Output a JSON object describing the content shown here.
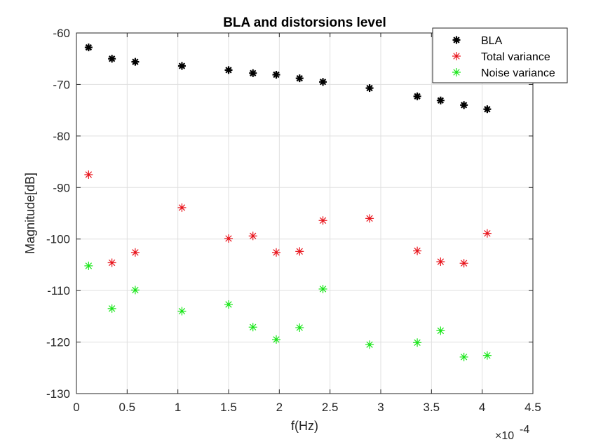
{
  "chart_data": {
    "type": "scatter",
    "title": "BLA and distorsions level",
    "xlabel": "f(Hz)",
    "ylabel": "Magnitude[dB]",
    "x_exponent": {
      "base": "×10",
      "power": "-4"
    },
    "xlim": [
      0,
      4.5
    ],
    "ylim": [
      -130,
      -60
    ],
    "x_ticks": [
      0,
      0.5,
      1,
      1.5,
      2,
      2.5,
      3,
      3.5,
      4,
      4.5
    ],
    "x_tick_labels": [
      "0",
      "0.5",
      "1",
      "1.5",
      "2",
      "2.5",
      "3",
      "3.5",
      "4",
      "4.5"
    ],
    "y_ticks": [
      -130,
      -120,
      -110,
      -100,
      -90,
      -80,
      -70,
      -60
    ],
    "y_tick_labels": [
      "-130",
      "-120",
      "-110",
      "-100",
      "-90",
      "-80",
      "-70",
      "-60"
    ],
    "grid": true,
    "legend_position": "top-right",
    "series": [
      {
        "name": "BLA",
        "color": "#000000",
        "x": [
          0.12,
          0.35,
          0.58,
          1.04,
          1.5,
          1.74,
          1.97,
          2.2,
          2.43,
          2.89,
          3.36,
          3.59,
          3.82,
          4.05
        ],
        "values": [
          -62.8,
          -65.0,
          -65.6,
          -66.4,
          -67.2,
          -67.8,
          -68.1,
          -68.8,
          -69.5,
          -70.7,
          -72.3,
          -73.1,
          -74.0,
          -74.8
        ]
      },
      {
        "name": "Total variance",
        "color": "#e8131b",
        "x": [
          0.12,
          0.35,
          0.58,
          1.04,
          1.5,
          1.74,
          1.97,
          2.2,
          2.43,
          2.89,
          3.36,
          3.59,
          3.82,
          4.05
        ],
        "values": [
          -87.5,
          -104.6,
          -102.6,
          -93.9,
          -99.9,
          -99.4,
          -102.6,
          -102.4,
          -96.4,
          -96.0,
          -102.3,
          -104.4,
          -104.7,
          -98.9
        ]
      },
      {
        "name": "Noise variance",
        "color": "#19e619",
        "x": [
          0.12,
          0.35,
          0.58,
          1.04,
          1.5,
          1.74,
          1.97,
          2.2,
          2.43,
          2.89,
          3.36,
          3.59,
          3.82,
          4.05
        ],
        "values": [
          -105.2,
          -113.5,
          -109.9,
          -114.0,
          -112.7,
          -117.1,
          -119.5,
          -117.2,
          -109.7,
          -120.5,
          -120.1,
          -117.8,
          -122.9,
          -122.6
        ]
      }
    ]
  }
}
